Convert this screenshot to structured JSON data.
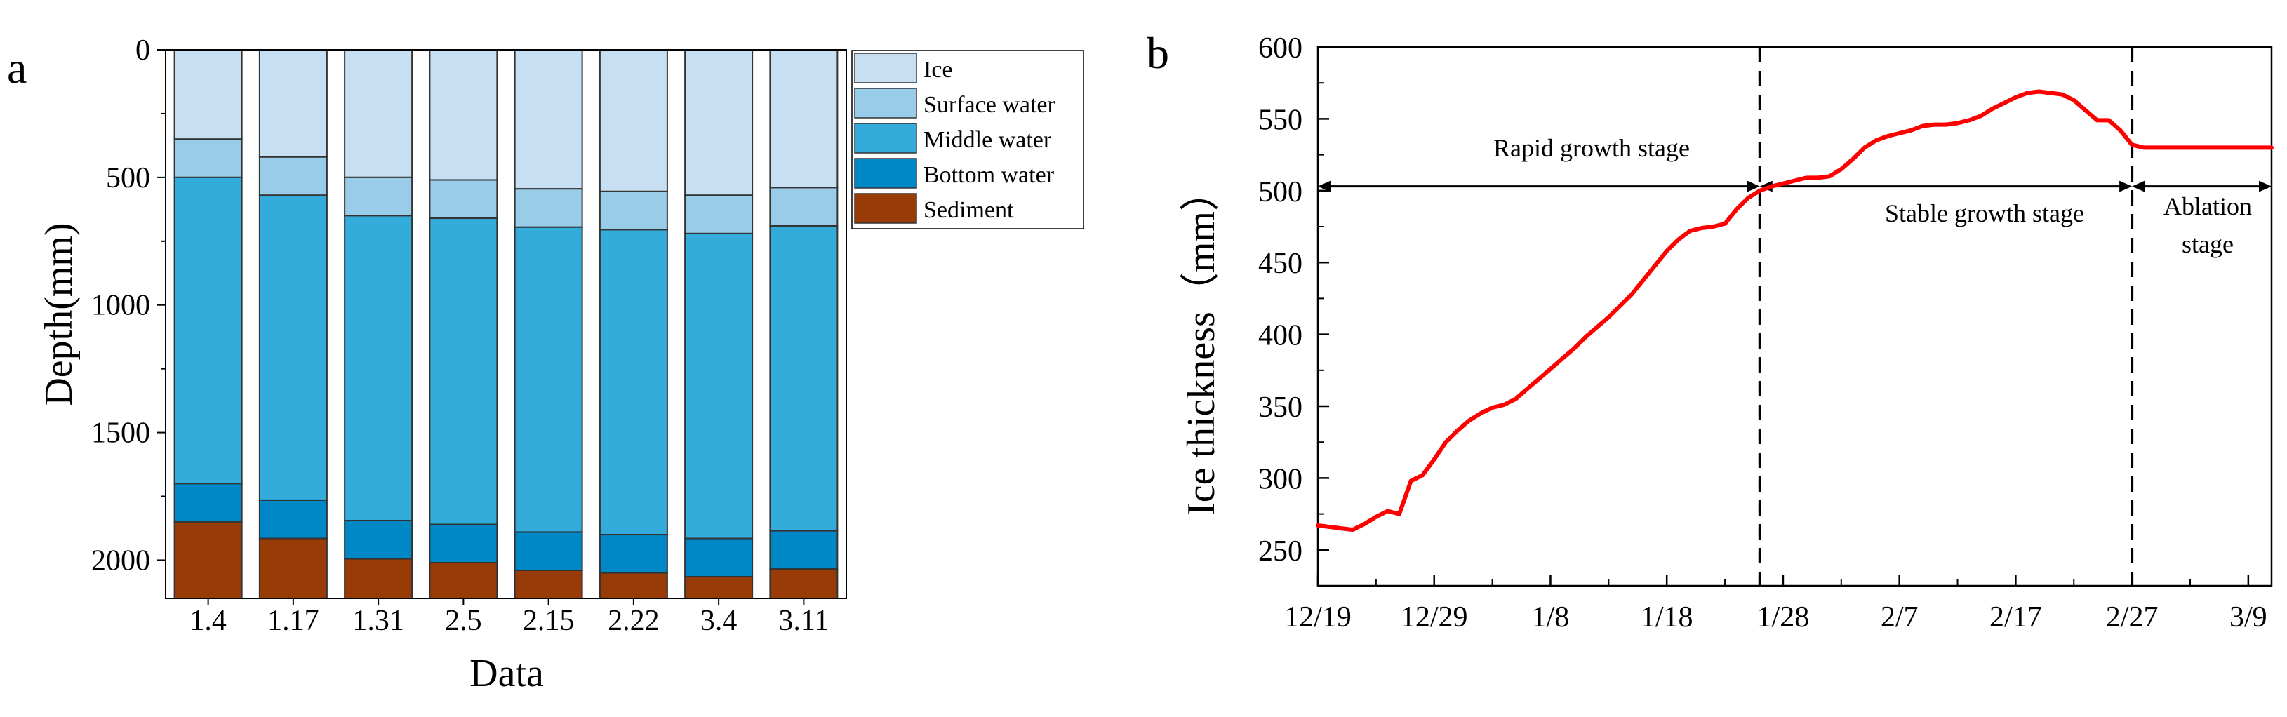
{
  "chart_data": [
    {
      "panel": "a",
      "type": "bar",
      "stacked": true,
      "orientation": "vertical",
      "categories": [
        "1.4",
        "1.17",
        "1.31",
        "2.5",
        "2.15",
        "2.22",
        "3.4",
        "3.11"
      ],
      "xlabel": "Data",
      "ylabel": "Depth(mm)",
      "ylim": [
        0,
        2150
      ],
      "y_inverted": true,
      "yticks": [
        0,
        500,
        1000,
        1500,
        2000
      ],
      "legend_position": "top-right",
      "series": [
        {
          "name": "Ice",
          "color": "#c6dff2",
          "values": [
            350,
            420,
            500,
            510,
            545,
            555,
            570,
            540
          ]
        },
        {
          "name": "Surface water",
          "color": "#99cce8",
          "values": [
            150,
            150,
            150,
            150,
            150,
            150,
            150,
            150
          ]
        },
        {
          "name": "Middle water",
          "color": "#33acdb",
          "values": [
            1200,
            1195,
            1195,
            1200,
            1195,
            1195,
            1195,
            1195
          ]
        },
        {
          "name": "Bottom water",
          "color": "#0087c6",
          "values": [
            150,
            150,
            150,
            150,
            150,
            150,
            150,
            150
          ]
        },
        {
          "name": "Sediment",
          "color": "#983b06",
          "values": [
            300,
            235,
            155,
            140,
            110,
            100,
            85,
            115
          ]
        }
      ]
    },
    {
      "panel": "b",
      "type": "line",
      "xlabel": "",
      "ylabel": "Ice thickness（mm）",
      "ylim": [
        225,
        600
      ],
      "xlim": [
        0,
        82
      ],
      "yticks": [
        250,
        300,
        350,
        400,
        450,
        500,
        550,
        600
      ],
      "xticks": [
        {
          "day": 0,
          "label": "12/19"
        },
        {
          "day": 10,
          "label": "12/29"
        },
        {
          "day": 20,
          "label": "1/8"
        },
        {
          "day": 30,
          "label": "1/18"
        },
        {
          "day": 40,
          "label": "1/28"
        },
        {
          "day": 50,
          "label": "2/7"
        },
        {
          "day": 60,
          "label": "2/17"
        },
        {
          "day": 70,
          "label": "2/27"
        },
        {
          "day": 80,
          "label": "3/9"
        }
      ],
      "line_color": "#ff0000",
      "series": [
        {
          "name": "Ice thickness",
          "x": [
            0,
            1,
            2,
            3,
            4,
            5,
            6,
            7,
            8,
            9,
            10,
            11,
            12,
            13,
            14,
            15,
            16,
            17,
            18,
            19,
            20,
            21,
            22,
            23,
            24,
            25,
            26,
            27,
            28,
            29,
            30,
            31,
            32,
            33,
            34,
            35,
            36,
            37,
            38,
            39,
            40,
            41,
            42,
            43,
            44,
            45,
            46,
            47,
            48,
            49,
            50,
            51,
            52,
            53,
            54,
            55,
            56,
            57,
            58,
            59,
            60,
            61,
            62,
            63,
            64,
            65,
            66,
            67,
            68,
            69,
            70,
            71,
            72,
            73,
            74,
            75,
            76,
            77,
            78,
            79,
            80,
            81,
            82
          ],
          "y": [
            267,
            266,
            265,
            264,
            268,
            273,
            277,
            275,
            298,
            302,
            313,
            325,
            333,
            340,
            345,
            349,
            351,
            355,
            362,
            369,
            376,
            383,
            390,
            398,
            405,
            412,
            420,
            428,
            438,
            448,
            458,
            466,
            472,
            474,
            475,
            477,
            487,
            495,
            500,
            503,
            505,
            507,
            509,
            509,
            510,
            515,
            522,
            530,
            535,
            538,
            540,
            542,
            545,
            546,
            546,
            547,
            549,
            552,
            557,
            561,
            565,
            568,
            569,
            568,
            567,
            563,
            556,
            549,
            549,
            542,
            532,
            530,
            530,
            530,
            530,
            530,
            530,
            530,
            530,
            530,
            530,
            530,
            530
          ]
        }
      ],
      "divider_days": [
        38,
        70
      ],
      "stages": [
        {
          "label": "Rapid growth stage"
        },
        {
          "label": "Stable growth stage"
        },
        {
          "label_line1": "Ablation",
          "label_line2": "stage"
        }
      ],
      "arrow_level": 503
    }
  ],
  "panel_labels": {
    "a": "a",
    "b": "b"
  }
}
